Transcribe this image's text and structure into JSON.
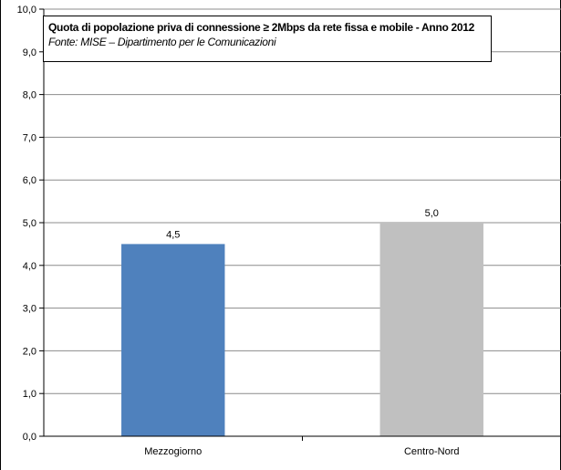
{
  "chart_data": {
    "type": "bar",
    "title": "Quota di popolazione priva di connessione ≥ 2Mbps da rete fissa e mobile - Anno 2012",
    "subtitle": "Fonte: MISE – Dipartimento  per le Comunicazioni",
    "categories": [
      "Mezzogiorno",
      "Centro-Nord"
    ],
    "values": [
      4.5,
      5.0
    ],
    "value_labels": [
      "4,5",
      "5,0"
    ],
    "bar_colors": [
      "#4f81bd",
      "#c0c0c0"
    ],
    "ylim": [
      0,
      10
    ],
    "yticks": [
      "0,0",
      "1,0",
      "2,0",
      "3,0",
      "4,0",
      "5,0",
      "6,0",
      "7,0",
      "8,0",
      "9,0",
      "10,0"
    ],
    "xlabel": "",
    "ylabel": "",
    "grid": true,
    "legend": "none"
  }
}
